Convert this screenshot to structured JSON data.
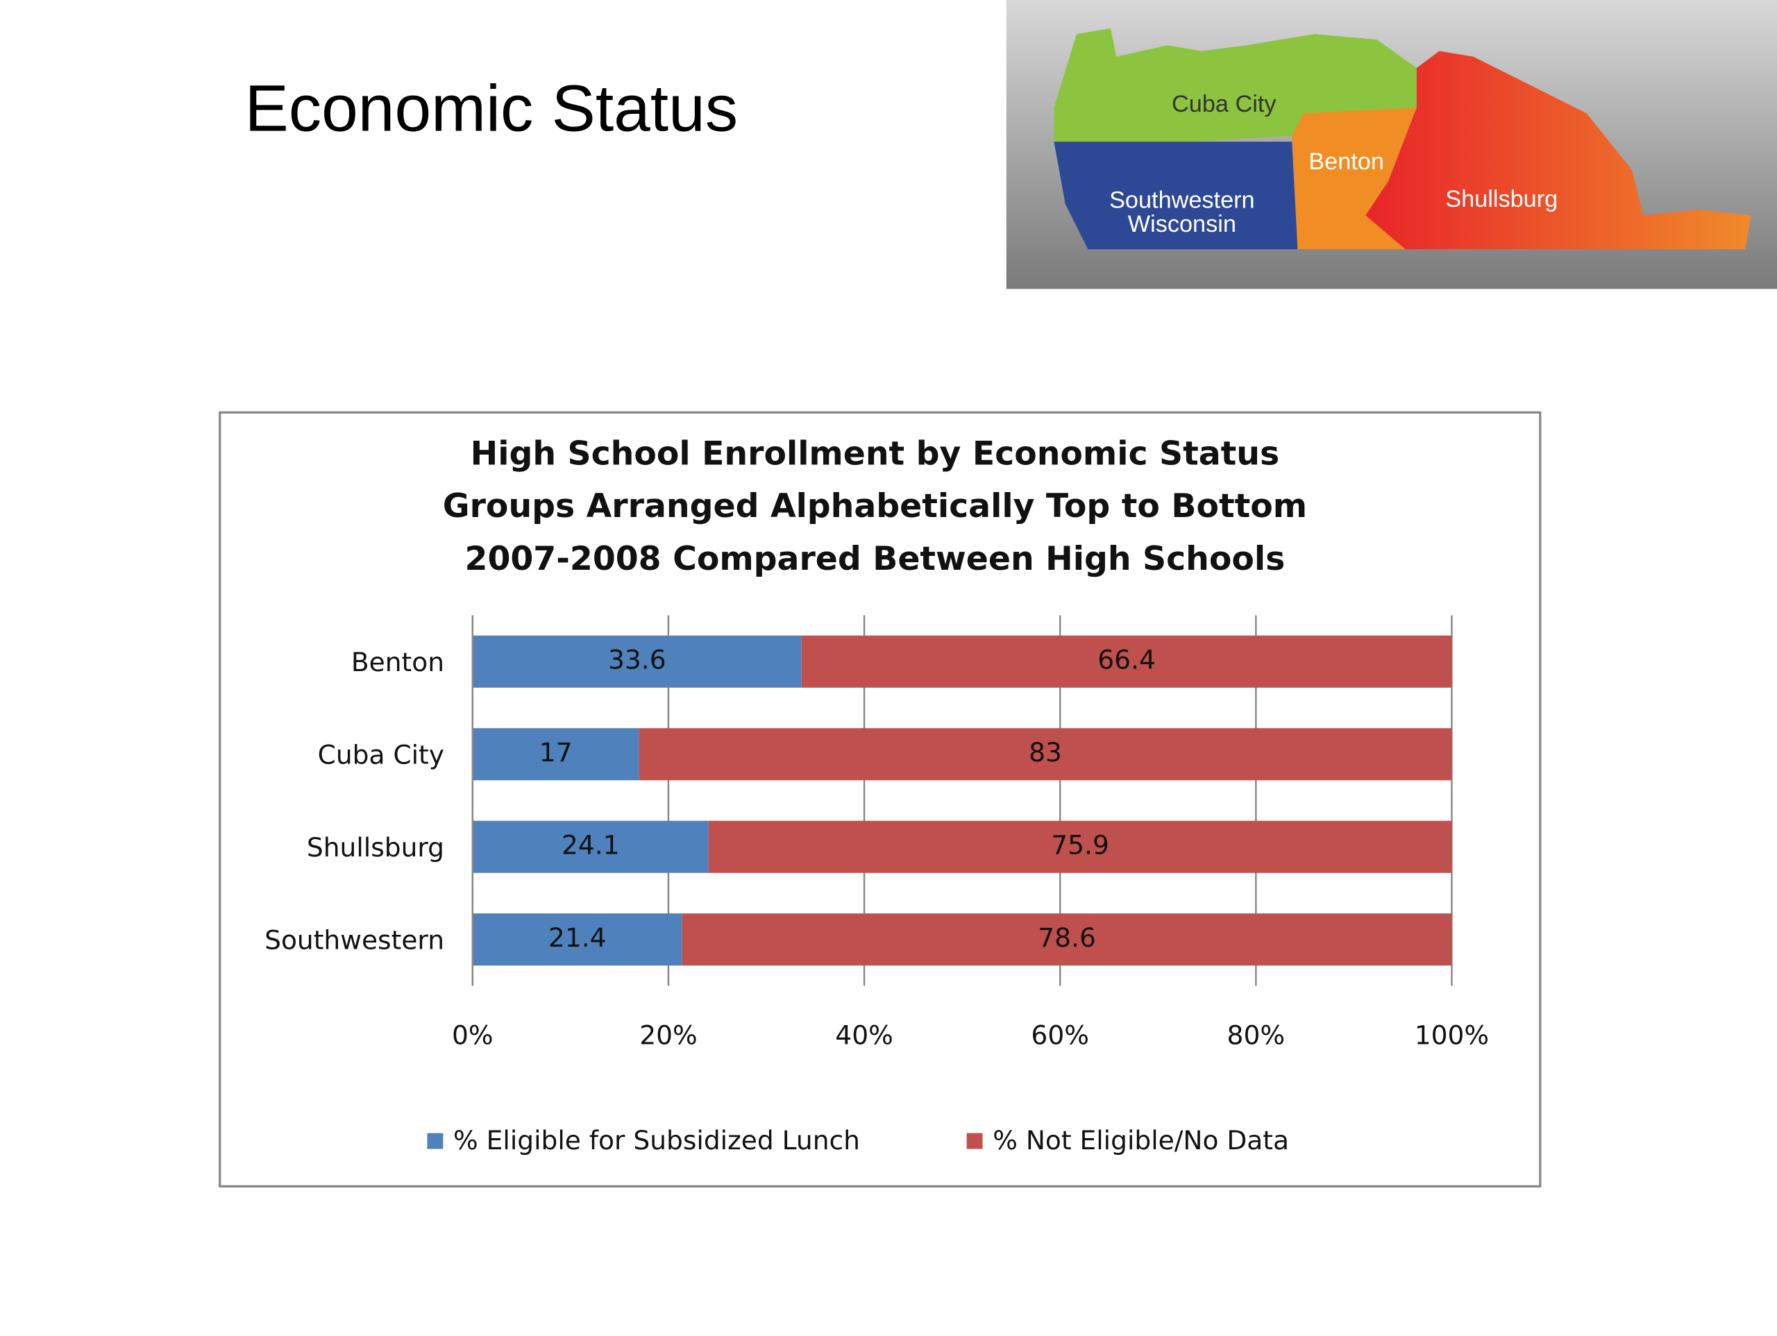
{
  "slide_title": "Economic Status",
  "map": {
    "labels": [
      "Cuba City",
      "Benton",
      "Southwestern Wisconsin",
      "Shullsburg"
    ]
  },
  "chart_data": {
    "type": "stacked-bar-horizontal",
    "title": [
      "High School Enrollment by Economic Status",
      "Groups Arranged Alphabetically Top to Bottom",
      "2007-2008 Compared Between High Schools"
    ],
    "categories": [
      "Benton",
      "Cuba City",
      "Shullsburg",
      "Southwestern"
    ],
    "series": [
      {
        "name": "% Eligible for Subsidized Lunch",
        "color": "#4f81bd",
        "values": [
          33.6,
          17,
          24.1,
          21.4
        ]
      },
      {
        "name": "% Not Eligible/No Data",
        "color": "#c0504d",
        "values": [
          66.4,
          83,
          75.9,
          78.6
        ]
      }
    ],
    "xlim": [
      0,
      100
    ],
    "xticks": [
      {
        "value": 0,
        "label": "0%"
      },
      {
        "value": 20,
        "label": "20%"
      },
      {
        "value": 40,
        "label": "40%"
      },
      {
        "value": 60,
        "label": "60%"
      },
      {
        "value": 80,
        "label": "80%"
      },
      {
        "value": 100,
        "label": "100%"
      }
    ],
    "grid": true,
    "legend": "bottom"
  }
}
